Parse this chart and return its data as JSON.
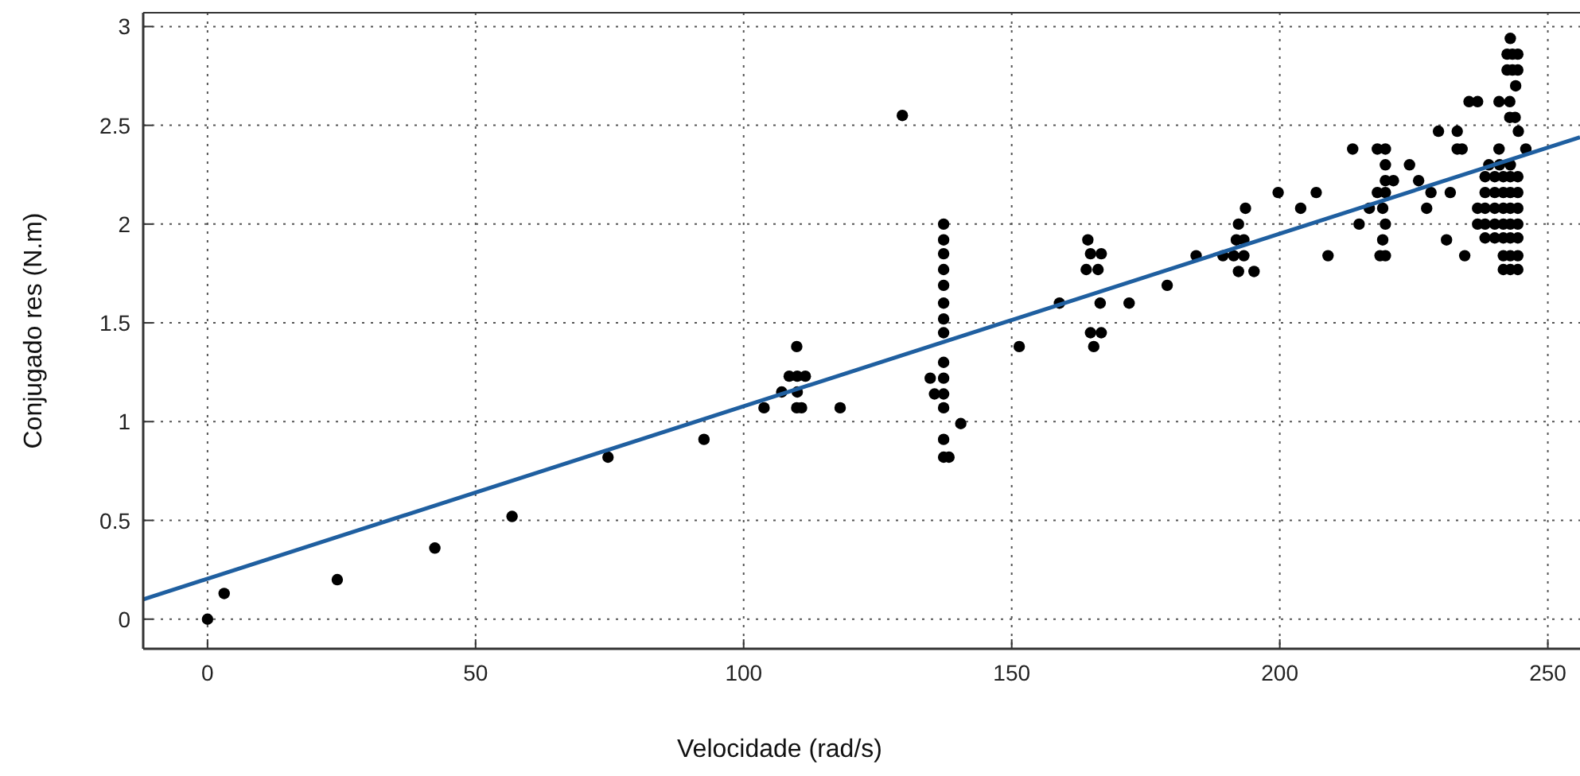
{
  "chart_data": {
    "type": "scatter",
    "xlabel": "Velocidade (rad/s)",
    "ylabel": "Conjugado res (N.m)",
    "xlim": [
      -12,
      256
    ],
    "ylim": [
      -0.15,
      3.07
    ],
    "xticks": [
      0,
      50,
      100,
      150,
      200,
      250
    ],
    "yticks": [
      0,
      0.5,
      1,
      1.5,
      2,
      2.5,
      3
    ],
    "grid": true,
    "series": [
      {
        "marker": "circle",
        "color": "#000000",
        "x": [
          0,
          3.1,
          24.2,
          42.4,
          56.8,
          74.7,
          92.6,
          103.8,
          107.1,
          109.9,
          108.5,
          110,
          111.5,
          110,
          109.9,
          110.8,
          118,
          129.6,
          137.3,
          137.3,
          137.3,
          137.3,
          137.3,
          137.3,
          137.3,
          137.3,
          137.3,
          137.3,
          137.3,
          137.3,
          137.3,
          137.3,
          134.8,
          135.6,
          138.3,
          140.5,
          151.4,
          158.9,
          164.2,
          164.7,
          166.7,
          163.9,
          166.1,
          166.5,
          164.7,
          166.7,
          165.3,
          171.9,
          179,
          184.4,
          189.4,
          193.6,
          192.3,
          191.9,
          193.3,
          191.4,
          193.3,
          192.3,
          195.2,
          199.7,
          203.9,
          206.8,
          209,
          214.8,
          213.6,
          218.2,
          219.7,
          219.7,
          219.7,
          221.2,
          218.2,
          219.7,
          216.7,
          219.2,
          219.7,
          219.2,
          218.7,
          219.7,
          224.2,
          225.9,
          228.2,
          227.4,
          229.6,
          231.8,
          231.1,
          233.1,
          233.1,
          234,
          234.5,
          235.3,
          236.9,
          243,
          242.4,
          243.4,
          244.4,
          242.4,
          243.4,
          244.4,
          244,
          240.9,
          242.9,
          242.9,
          243.9,
          244.5,
          240.9,
          245.9,
          239,
          241,
          243,
          238.3,
          240.1,
          241.7,
          243,
          244.4,
          238.3,
          240.1,
          241.7,
          243,
          244.4,
          238.3,
          240.1,
          241.7,
          243,
          244.4,
          238.3,
          240.1,
          241.7,
          243,
          244.4,
          238.3,
          240.1,
          241.7,
          243,
          244.4,
          236.9,
          236.9,
          241.7,
          243,
          244.4,
          241.7,
          243,
          244.4
        ],
        "values": [
          0,
          0.13,
          0.2,
          0.36,
          0.52,
          0.82,
          0.91,
          1.07,
          1.15,
          1.38,
          1.23,
          1.23,
          1.23,
          1.15,
          1.07,
          1.07,
          1.07,
          2.55,
          2.0,
          1.92,
          1.85,
          1.77,
          1.69,
          1.6,
          1.52,
          1.45,
          1.3,
          1.22,
          1.14,
          1.07,
          0.91,
          0.82,
          1.22,
          1.14,
          0.82,
          0.99,
          1.38,
          1.6,
          1.92,
          1.85,
          1.85,
          1.77,
          1.77,
          1.6,
          1.45,
          1.45,
          1.38,
          1.6,
          1.69,
          1.84,
          1.84,
          2.08,
          2.0,
          1.92,
          1.92,
          1.84,
          1.84,
          1.76,
          1.76,
          2.16,
          2.08,
          2.16,
          1.84,
          2.0,
          2.38,
          2.38,
          2.38,
          2.3,
          2.22,
          2.22,
          2.16,
          2.16,
          2.08,
          2.08,
          2.0,
          1.92,
          1.84,
          1.84,
          2.3,
          2.22,
          2.16,
          2.08,
          2.47,
          2.16,
          1.92,
          2.47,
          2.38,
          2.38,
          1.84,
          2.62,
          2.62,
          2.94,
          2.86,
          2.86,
          2.86,
          2.78,
          2.78,
          2.78,
          2.7,
          2.62,
          2.62,
          2.54,
          2.54,
          2.47,
          2.38,
          2.38,
          2.3,
          2.3,
          2.3,
          2.24,
          2.24,
          2.24,
          2.24,
          2.24,
          2.16,
          2.16,
          2.16,
          2.16,
          2.16,
          2.08,
          2.08,
          2.08,
          2.08,
          2.08,
          2.0,
          2.0,
          2.0,
          2.0,
          2.0,
          1.93,
          1.93,
          1.93,
          1.93,
          1.93,
          2.08,
          2.0,
          1.84,
          1.84,
          1.84,
          1.77,
          1.77,
          1.77
        ]
      },
      {
        "type": "line",
        "color": "#1f5fa0",
        "x": [
          -12,
          256
        ],
        "values": [
          0.1,
          2.44
        ]
      }
    ]
  }
}
